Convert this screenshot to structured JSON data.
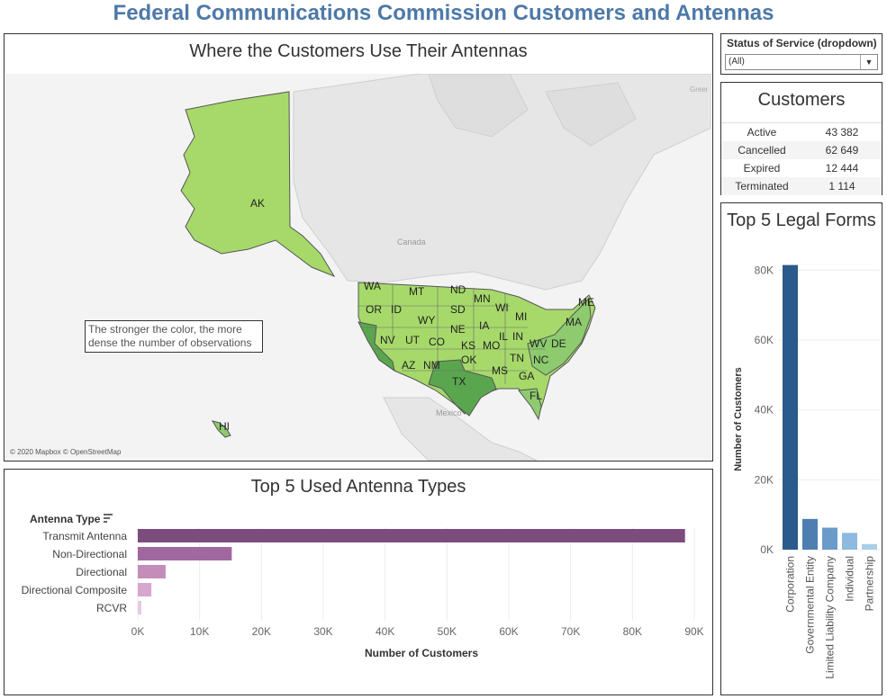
{
  "dashboard": {
    "title": "Federal Communications Commission Customers and Antennas"
  },
  "map": {
    "title": "Where the Customers Use Their Antennas",
    "note": "The stronger the color, the more dense the number of observations",
    "attribution": "© 2020 Mapbox © OpenStreetMap",
    "place_labels": [
      "Canada",
      "Mexico",
      "Greer"
    ],
    "state_labels": [
      "AK",
      "HI",
      "WA",
      "OR",
      "MT",
      "ID",
      "ND",
      "SD",
      "MN",
      "WI",
      "MI",
      "WY",
      "NE",
      "IA",
      "IL",
      "IN",
      "NV",
      "UT",
      "CO",
      "KS",
      "MO",
      "OK",
      "NM",
      "AZ",
      "TX",
      "MS",
      "TN",
      "NC",
      "GA",
      "FL",
      "WV",
      "DE",
      "MA",
      "ME"
    ],
    "colors": {
      "light": "#a6d96a",
      "medium": "#8dcb6e",
      "dark": "#5aa64f",
      "land": "#e9e9e9",
      "water": "#f7f7f7",
      "border": "#555555"
    }
  },
  "filter": {
    "label": "Status of Service (dropdown)",
    "value": "(All)"
  },
  "customers": {
    "title": "Customers",
    "rows": [
      {
        "label": "Active",
        "value": "43 382"
      },
      {
        "label": "Cancelled",
        "value": "62 649"
      },
      {
        "label": "Expired",
        "value": "12 444"
      },
      {
        "label": "Terminated",
        "value": "1 114"
      }
    ]
  },
  "antenna": {
    "title": "Top 5 Used Antenna Types",
    "header": "Antenna Type",
    "chart_data": {
      "type": "bar",
      "orientation": "horizontal",
      "categories": [
        "Transmit Antenna",
        "Non-Directional",
        "Directional",
        "Directional Composite",
        "RCVR"
      ],
      "values": [
        88500,
        15200,
        4500,
        2200,
        600
      ],
      "colors": [
        "#7b4c7c",
        "#a1689f",
        "#c48db9",
        "#d7a7cf",
        "#e8c9e3"
      ],
      "xlabel": "Number of Customers",
      "xlim": [
        0,
        90000
      ],
      "ticks": [
        0,
        10000,
        20000,
        30000,
        40000,
        50000,
        60000,
        70000,
        80000,
        90000
      ],
      "tick_labels": [
        "0K",
        "10K",
        "20K",
        "30K",
        "40K",
        "50K",
        "60K",
        "70K",
        "80K",
        "90K"
      ],
      "grid": true
    }
  },
  "legal": {
    "title": "Top 5 Legal Forms",
    "chart_data": {
      "type": "bar",
      "orientation": "vertical",
      "categories": [
        "Corporation",
        "Governmental Entity",
        "Limited Liability Company",
        "Individual",
        "Partnership"
      ],
      "values": [
        81500,
        8800,
        6300,
        4800,
        1600
      ],
      "colors": [
        "#2b5b8c",
        "#4e7fb0",
        "#6b9bc9",
        "#8dbade",
        "#a9cfe8"
      ],
      "ylabel": "Number of Customers",
      "ylim": [
        0,
        85000
      ],
      "ticks": [
        0,
        20000,
        40000,
        60000,
        80000
      ],
      "tick_labels": [
        "0K",
        "20K",
        "40K",
        "60K",
        "80K"
      ],
      "grid": true
    }
  }
}
